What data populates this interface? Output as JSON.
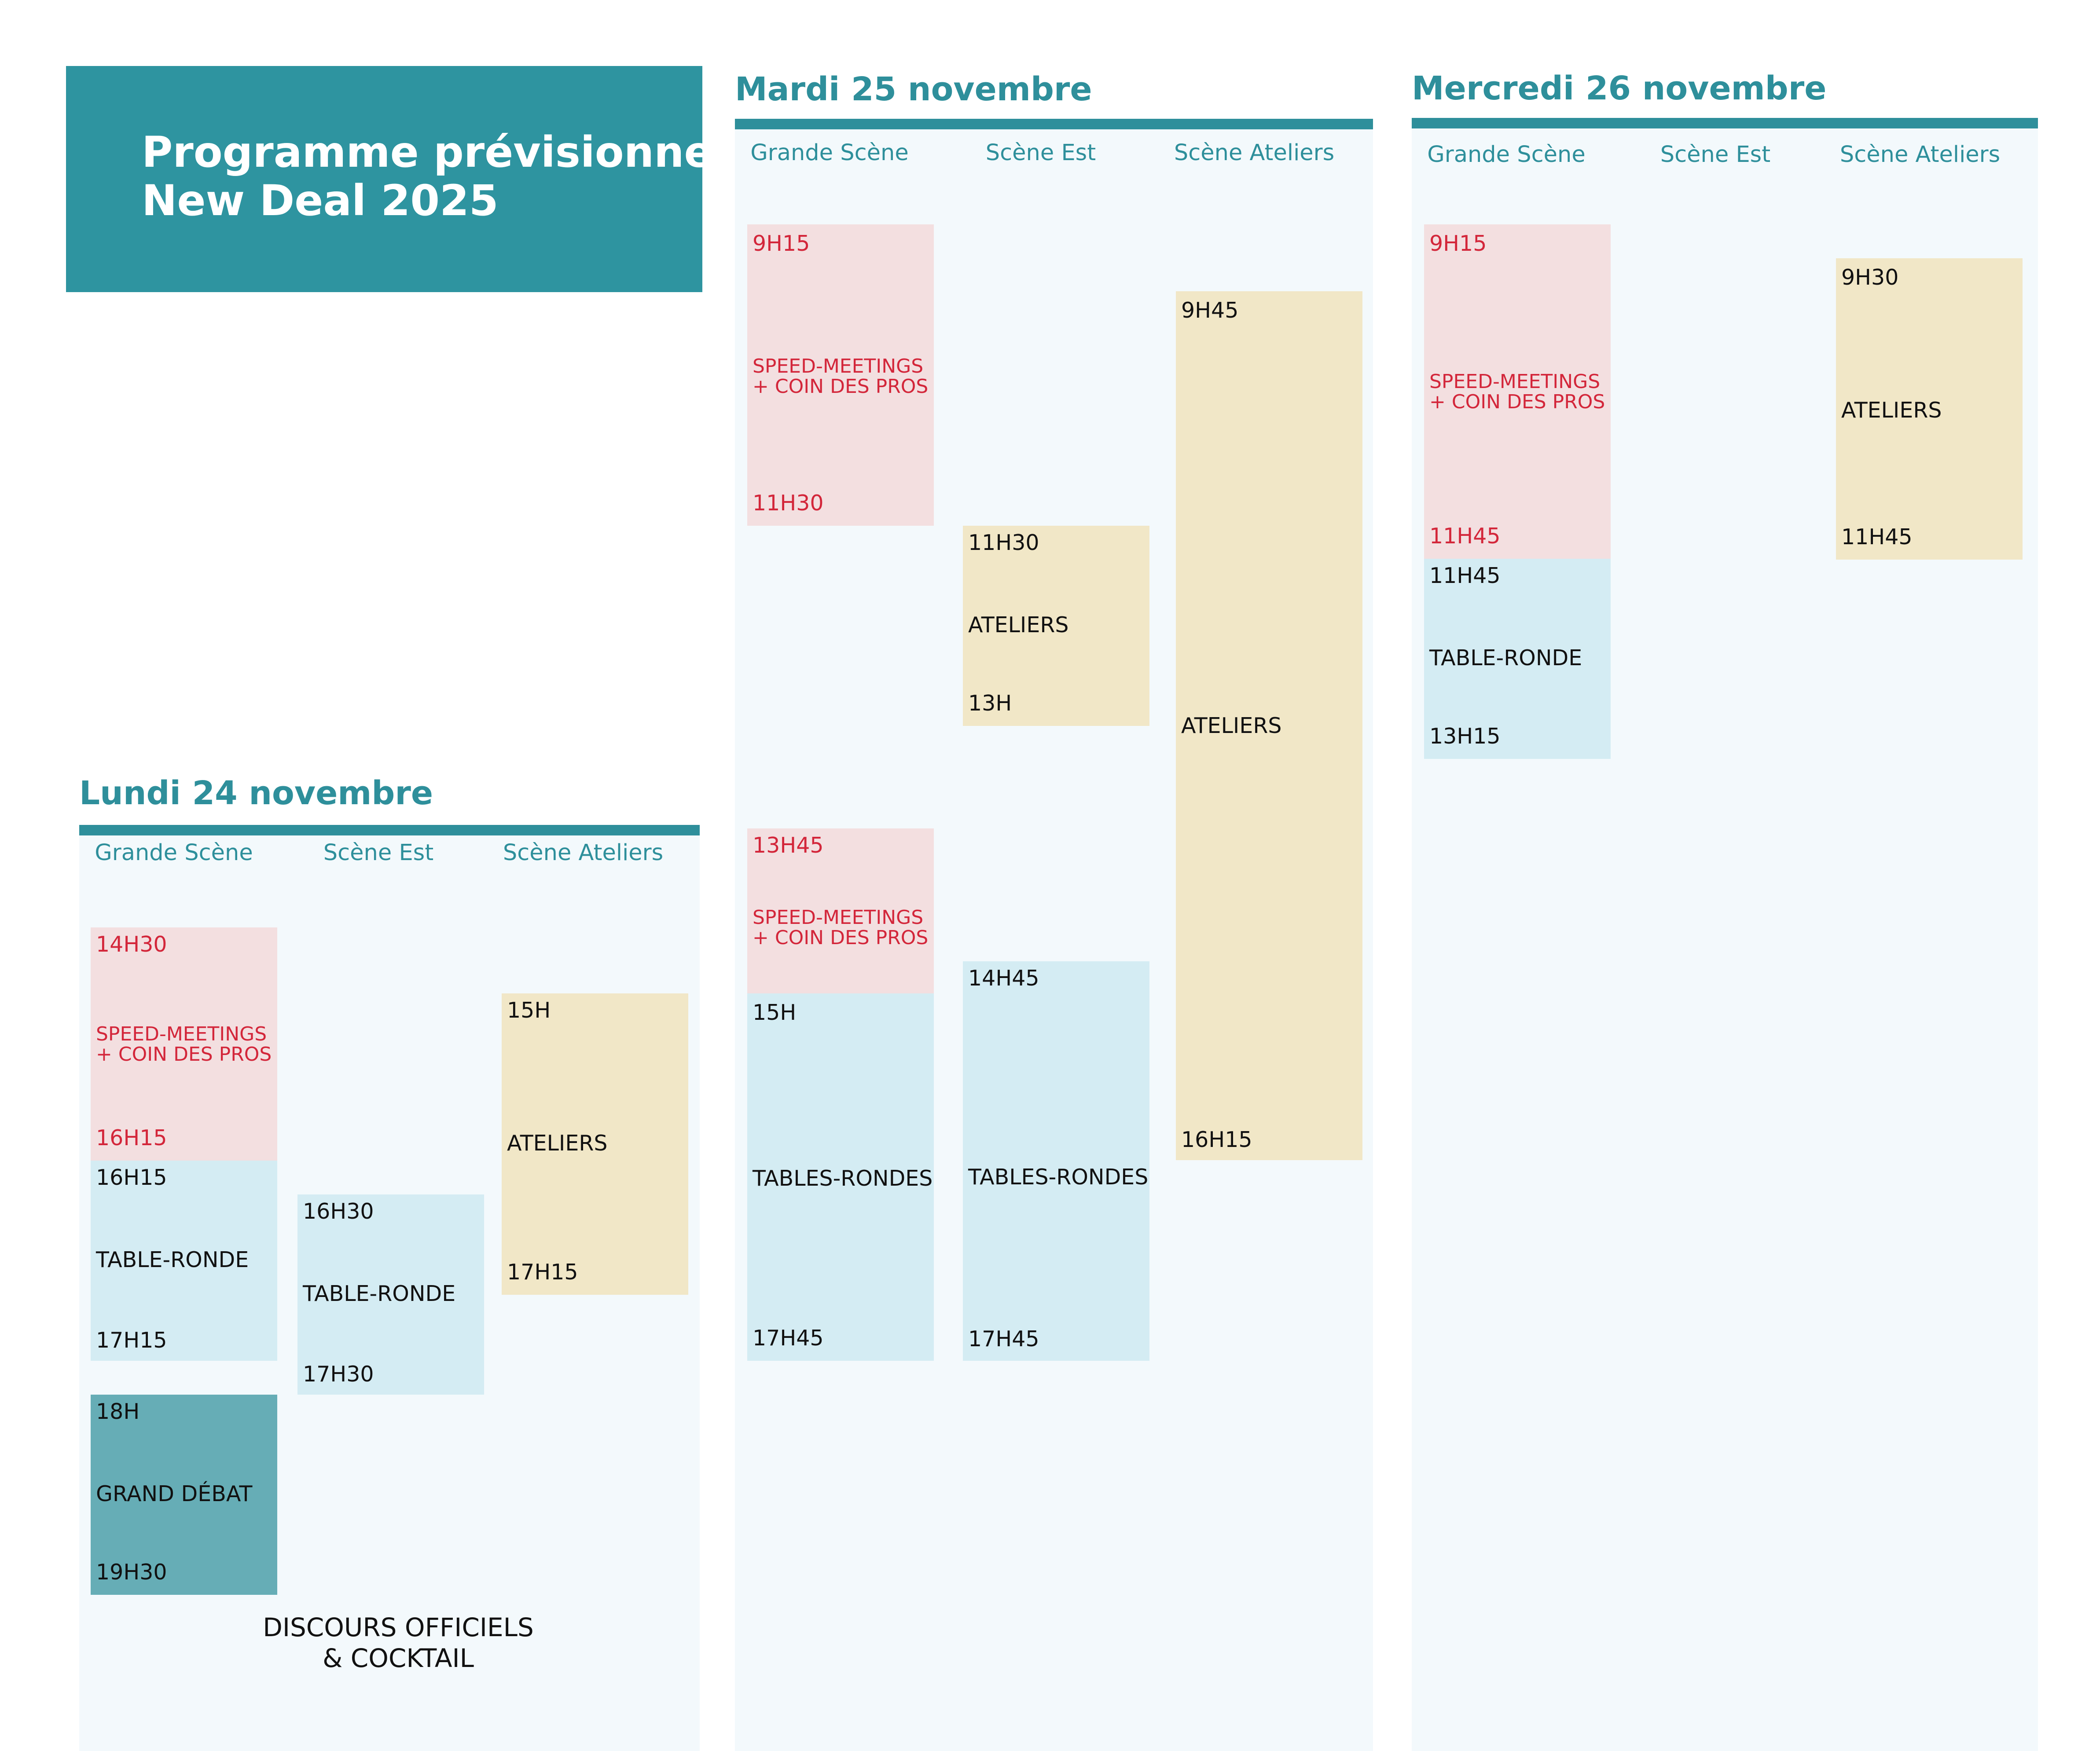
{
  "header": {
    "line1": "Programme prévisionnel",
    "line2": "New Deal 2025"
  },
  "stage_names": {
    "grande": "Grande Scène",
    "est": "Scène Est",
    "ateliers": "Scène Ateliers"
  },
  "days": {
    "lundi": {
      "title": "Lundi 24 novembre",
      "grande": [
        {
          "start": "14H30",
          "label": "SPEED-MEETINGS\n+ COIN DES PROS",
          "end": "16H15"
        },
        {
          "start": "16H15",
          "label": "TABLE-RONDE",
          "end": "17H15"
        },
        {
          "start": "18H",
          "label": "GRAND DÉBAT",
          "end": "19H30"
        }
      ],
      "est": [
        {
          "start": "16H30",
          "label": "TABLE-RONDE",
          "end": "17H30"
        }
      ],
      "ateliers": [
        {
          "start": "15H",
          "label": "ATELIERS",
          "end": "17H15"
        }
      ],
      "closing": "DISCOURS OFFICIELS\n& COCKTAIL"
    },
    "mardi": {
      "title": "Mardi 25 novembre",
      "grande": [
        {
          "start": "9H15",
          "label": "SPEED-MEETINGS\n+ COIN DES PROS",
          "end": "11H30"
        },
        {
          "start": "13H45",
          "label": "SPEED-MEETINGS\n+ COIN DES PROS"
        },
        {
          "start": "15H",
          "label": "TABLES-RONDES",
          "end": "17H45"
        }
      ],
      "est": [
        {
          "start": "11H30",
          "label": "ATELIERS",
          "end": "13H"
        },
        {
          "start": "14H45",
          "label": "TABLES-RONDES",
          "end": "17H45"
        }
      ],
      "ateliers": [
        {
          "start": "9H45",
          "label": "ATELIERS",
          "end": "16H15"
        }
      ]
    },
    "mercredi": {
      "title": "Mercredi 26 novembre",
      "grande": [
        {
          "start": "9H15",
          "label": "SPEED-MEETINGS\n+ COIN DES PROS",
          "end": "11H45"
        },
        {
          "start": "11H45",
          "label": "TABLE-RONDE",
          "end": "13H15"
        }
      ],
      "ateliers": [
        {
          "start": "9H30",
          "label": "ATELIERS",
          "end": "11H45"
        }
      ]
    }
  }
}
